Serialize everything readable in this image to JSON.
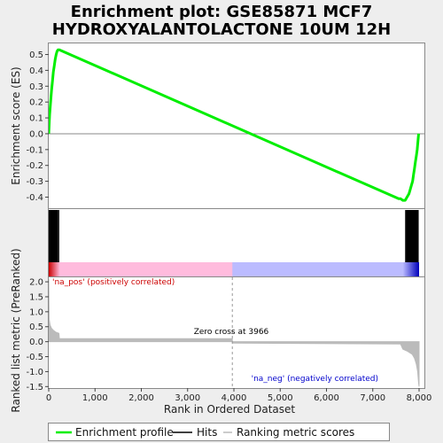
{
  "chart_data": {
    "type": "line",
    "title_lines": [
      "Enrichment plot: GSE85871 MCF7",
      "HYDROXYALANTOLACTONE 10UM 12H"
    ],
    "xlabel": "Rank in Ordered Dataset",
    "xlim": [
      0,
      8000
    ],
    "x_ticks": [
      0,
      1000,
      2000,
      3000,
      4000,
      5000,
      6000,
      7000,
      8000
    ],
    "x_tick_labels": [
      "0",
      "1,000",
      "2,000",
      "3,000",
      "4,000",
      "5,000",
      "6,000",
      "7,000",
      "8,000"
    ],
    "top_panel": {
      "ylabel": "Enrichment score (ES)",
      "ylim": [
        -0.47,
        0.57
      ],
      "y_ticks": [
        -0.4,
        -0.3,
        -0.2,
        -0.1,
        0.0,
        0.1,
        0.2,
        0.3,
        0.4,
        0.5
      ],
      "y_tick_labels": [
        "-0.4",
        "-0.3",
        "-0.2",
        "-0.1",
        "0.0",
        "0.1",
        "0.2",
        "0.3",
        "0.4",
        "0.5"
      ],
      "series": [
        {
          "name": "Enrichment profile",
          "color": "#00ee00",
          "x": [
            0,
            20,
            40,
            60,
            80,
            100,
            120,
            140,
            160,
            180,
            200,
            230,
            7560,
            7600,
            7650,
            7700,
            7740,
            7780,
            7800,
            7830,
            7860,
            7880,
            7900,
            7920,
            7940,
            7960,
            7975,
            7990
          ],
          "y": [
            0.0,
            0.12,
            0.2,
            0.27,
            0.33,
            0.39,
            0.43,
            0.47,
            0.5,
            0.52,
            0.53,
            0.53,
            -0.41,
            -0.41,
            -0.42,
            -0.42,
            -0.4,
            -0.38,
            -0.36,
            -0.33,
            -0.3,
            -0.26,
            -0.22,
            -0.18,
            -0.14,
            -0.1,
            -0.05,
            0.0
          ]
        }
      ]
    },
    "hits_panel": {
      "hit_ranks": [
        10,
        20,
        30,
        40,
        50,
        60,
        70,
        80,
        90,
        100,
        110,
        120,
        130,
        140,
        150,
        160,
        170,
        180,
        190,
        215,
        7710,
        7730,
        7750,
        7770,
        7790,
        7800,
        7810,
        7820,
        7830,
        7840,
        7850,
        7860,
        7870,
        7880,
        7890,
        7900,
        7910,
        7920,
        7930,
        7940,
        7950,
        7960,
        7970,
        7980
      ],
      "line_color": "#000000",
      "gradient": {
        "stops": [
          {
            "rank": 0,
            "color": "#cc0000"
          },
          {
            "rank": 240,
            "color": "#ffbbdd"
          },
          {
            "rank": 3966,
            "color": "#ffbbdd"
          },
          {
            "rank": 3967,
            "color": "#bbbbff"
          },
          {
            "rank": 7650,
            "color": "#bbbbff"
          },
          {
            "rank": 8000,
            "color": "#0000bb"
          }
        ]
      }
    },
    "bottom_panel": {
      "ylabel": "Ranked list metric (PreRanked)",
      "ylim": [
        -1.55,
        2.15
      ],
      "y_ticks": [
        -1.5,
        -1.0,
        -0.5,
        0.0,
        0.5,
        1.0,
        1.5,
        2.0
      ],
      "y_tick_labels": [
        "-1.5",
        "-1.0",
        "-0.5",
        "0.0",
        "0.5",
        "1.0",
        "1.5",
        "2.0"
      ],
      "series": [
        {
          "name": "Ranking metric scores",
          "color": "#bbbbbb",
          "x": [
            0,
            10,
            30,
            60,
            100,
            150,
            220,
            230,
            3966,
            3967,
            7600,
            7650,
            7750,
            7850,
            7900,
            7940,
            7970,
            7990,
            8000
          ],
          "y": [
            2.1,
            0.75,
            0.55,
            0.45,
            0.38,
            0.32,
            0.28,
            0.1,
            0.1,
            -0.05,
            -0.08,
            -0.25,
            -0.32,
            -0.42,
            -0.55,
            -0.75,
            -1.0,
            -1.4,
            -1.5
          ]
        }
      ],
      "zero_cross_rank": 3966,
      "zero_cross_label": "Zero cross at 3966",
      "pos_label": "'na_pos' (positively correlated)",
      "neg_label": "'na_neg' (negatively correlated)",
      "pos_color": "#cc0000",
      "neg_color": "#0000cc"
    },
    "legend": {
      "position": "bottom",
      "entries": [
        {
          "label": "Enrichment profile",
          "color": "#00ee00"
        },
        {
          "label": "Hits",
          "color": "#000000"
        },
        {
          "label": "Ranking metric scores",
          "color": "#bbbbbb"
        }
      ]
    }
  }
}
